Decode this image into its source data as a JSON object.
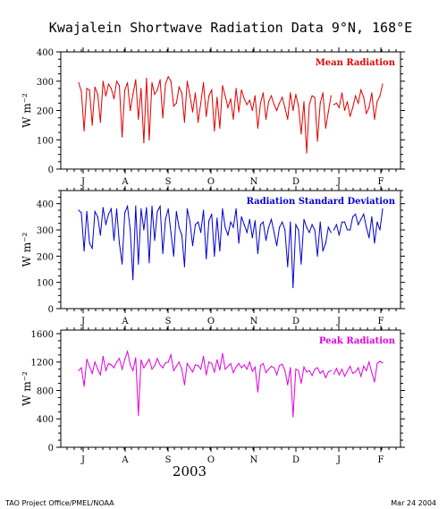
{
  "title": "Kwajalein Shortwave Radiation Data  9°N, 168°E",
  "footer_left": "TAO Project Office/PMEL/NOAA",
  "footer_right": "Mar 24 2004",
  "year_label": "2003",
  "month_labels": [
    "J",
    "A",
    "S",
    "O",
    "N",
    "D",
    "J",
    "F"
  ],
  "chart_data": [
    {
      "type": "line",
      "label": "Mean Radiation",
      "color": "#e00000",
      "ylabel": "W m⁻²",
      "ylim": [
        0,
        400
      ],
      "yticks": [
        0,
        100,
        200,
        300,
        400
      ],
      "x_unit": "day index (day 0 = first plotted day, early July 2003)",
      "x": [
        0,
        2,
        4,
        6,
        8,
        10,
        12,
        14,
        16,
        18,
        20,
        22,
        24,
        26,
        28,
        30,
        32,
        34,
        36,
        38,
        40,
        42,
        44,
        46,
        48,
        50,
        52,
        54,
        56,
        58,
        60,
        62,
        64,
        66,
        68,
        70,
        72,
        74,
        76,
        78,
        80,
        82,
        84,
        86,
        88,
        90,
        92,
        94,
        96,
        98,
        100,
        102,
        104,
        106,
        108,
        110,
        112,
        114,
        116,
        118,
        120,
        122,
        124,
        126,
        128,
        130,
        132,
        134,
        136,
        138,
        140,
        142,
        144,
        146,
        148,
        150,
        152,
        154,
        156,
        158,
        160,
        162,
        164,
        166,
        168,
        170,
        172,
        174,
        176,
        178,
        180,
        182,
        184,
        186,
        188,
        190,
        192,
        194,
        196,
        198,
        200,
        202,
        204,
        206,
        208,
        210,
        212,
        214,
        216,
        218,
        220,
        222,
        224
      ],
      "values": [
        295,
        265,
        130,
        275,
        270,
        150,
        280,
        255,
        160,
        300,
        250,
        290,
        275,
        240,
        300,
        285,
        110,
        270,
        295,
        200,
        255,
        305,
        170,
        275,
        90,
        310,
        100,
        295,
        255,
        270,
        305,
        175,
        290,
        315,
        300,
        215,
        225,
        280,
        260,
        160,
        300,
        250,
        195,
        260,
        160,
        225,
        295,
        180,
        250,
        270,
        130,
        245,
        140,
        285,
        250,
        210,
        240,
        170,
        275,
        195,
        270,
        240,
        220,
        235,
        200,
        250,
        140,
        225,
        260,
        170,
        230,
        250,
        220,
        200,
        225,
        245,
        210,
        170,
        260,
        200,
        255,
        215,
        120,
        230,
        55,
        220,
        250,
        245,
        95,
        225,
        260,
        140,
        195,
        250,
        220,
        225,
        210,
        260,
        200,
        230,
        180,
        210,
        250,
        225,
        270,
        245,
        190,
        210,
        260,
        170,
        230,
        250,
        290
      ],
      "gaps_after_index": [
        93
      ]
    },
    {
      "type": "line",
      "label": "Radiation Standard Deviation",
      "color": "#0000d0",
      "ylabel": "W m⁻²",
      "ylim": [
        0,
        450
      ],
      "yticks": [
        0,
        100,
        200,
        300,
        400
      ],
      "x_unit": "day index (day 0 = first plotted day, early July 2003)",
      "x": [
        0,
        2,
        4,
        6,
        8,
        10,
        12,
        14,
        16,
        18,
        20,
        22,
        24,
        26,
        28,
        30,
        32,
        34,
        36,
        38,
        40,
        42,
        44,
        46,
        48,
        50,
        52,
        54,
        56,
        58,
        60,
        62,
        64,
        66,
        68,
        70,
        72,
        74,
        76,
        78,
        80,
        82,
        84,
        86,
        88,
        90,
        92,
        94,
        96,
        98,
        100,
        102,
        104,
        106,
        108,
        110,
        112,
        114,
        116,
        118,
        120,
        122,
        124,
        126,
        128,
        130,
        132,
        134,
        136,
        138,
        140,
        142,
        144,
        146,
        148,
        150,
        152,
        154,
        156,
        158,
        160,
        162,
        164,
        166,
        168,
        170,
        172,
        174,
        176,
        178,
        180,
        182,
        184,
        186,
        188,
        190,
        192,
        194,
        196,
        198,
        200,
        202,
        204,
        206,
        208,
        210,
        212,
        214,
        216,
        218,
        220,
        222,
        224
      ],
      "values": [
        375,
        365,
        220,
        370,
        250,
        230,
        370,
        350,
        280,
        385,
        320,
        360,
        380,
        260,
        380,
        250,
        170,
        365,
        390,
        300,
        110,
        390,
        170,
        380,
        300,
        385,
        175,
        390,
        260,
        370,
        390,
        210,
        340,
        380,
        290,
        200,
        370,
        310,
        280,
        160,
        380,
        330,
        240,
        320,
        330,
        290,
        375,
        190,
        335,
        360,
        200,
        345,
        220,
        380,
        310,
        280,
        330,
        310,
        380,
        250,
        350,
        320,
        290,
        340,
        270,
        335,
        210,
        320,
        330,
        260,
        310,
        340,
        290,
        240,
        310,
        330,
        300,
        160,
        330,
        80,
        320,
        300,
        170,
        340,
        310,
        290,
        320,
        300,
        200,
        330,
        220,
        250,
        310,
        290,
        300,
        320,
        280,
        330,
        330,
        300,
        300,
        350,
        360,
        320,
        340,
        360,
        310,
        270,
        350,
        250,
        330,
        300,
        380
      ],
      "gaps_after_index": [
        93
      ]
    },
    {
      "type": "line",
      "label": "Peak Radiation",
      "color": "#e000e0",
      "ylabel": "W m⁻²",
      "ylim": [
        0,
        1650
      ],
      "yticks": [
        0,
        400,
        800,
        1200,
        1600
      ],
      "x_unit": "day index (day 0 = first plotted day, early July 2003)",
      "x": [
        0,
        2,
        4,
        6,
        8,
        10,
        12,
        14,
        16,
        18,
        20,
        22,
        24,
        26,
        28,
        30,
        32,
        34,
        36,
        38,
        40,
        42,
        44,
        46,
        48,
        50,
        52,
        54,
        56,
        58,
        60,
        62,
        64,
        66,
        68,
        70,
        72,
        74,
        76,
        78,
        80,
        82,
        84,
        86,
        88,
        90,
        92,
        94,
        96,
        98,
        100,
        102,
        104,
        106,
        108,
        110,
        112,
        114,
        116,
        118,
        120,
        122,
        124,
        126,
        128,
        130,
        132,
        134,
        136,
        138,
        140,
        142,
        144,
        146,
        148,
        150,
        152,
        154,
        156,
        158,
        160,
        162,
        164,
        166,
        168,
        170,
        172,
        174,
        176,
        178,
        180,
        182,
        184,
        186,
        188,
        190,
        192,
        194,
        196,
        198,
        200,
        202,
        204,
        206,
        208,
        210,
        212,
        214,
        216,
        218,
        220,
        222,
        224
      ],
      "values": [
        1080,
        1120,
        860,
        1240,
        1140,
        1040,
        1200,
        1100,
        1020,
        1280,
        1080,
        1180,
        1160,
        1120,
        1200,
        1250,
        1100,
        1240,
        1350,
        1160,
        1080,
        1260,
        450,
        1230,
        1120,
        1180,
        1240,
        1100,
        1150,
        1250,
        1160,
        1120,
        1190,
        1200,
        1300,
        1080,
        1140,
        1200,
        1100,
        880,
        1180,
        1120,
        1060,
        1160,
        1150,
        1100,
        1280,
        1020,
        1200,
        1180,
        1060,
        1230,
        1090,
        1320,
        1100,
        1140,
        1180,
        1050,
        1130,
        1180,
        1120,
        1160,
        1100,
        1200,
        1070,
        1130,
        780,
        1150,
        1180,
        1050,
        1100,
        1140,
        1120,
        1020,
        1150,
        1170,
        1080,
        880,
        1120,
        430,
        1100,
        1080,
        900,
        1130,
        1060,
        1080,
        1010,
        1100,
        1120,
        1040,
        1080,
        980,
        1060,
        1080,
        1030,
        1110,
        1020,
        1100,
        1000,
        1070,
        1140,
        1040,
        1060,
        1120,
        1000,
        1140,
        1080,
        1200,
        1050,
        920,
        1180,
        1210,
        1190
      ],
      "gaps_after_index": [
        93
      ]
    }
  ]
}
